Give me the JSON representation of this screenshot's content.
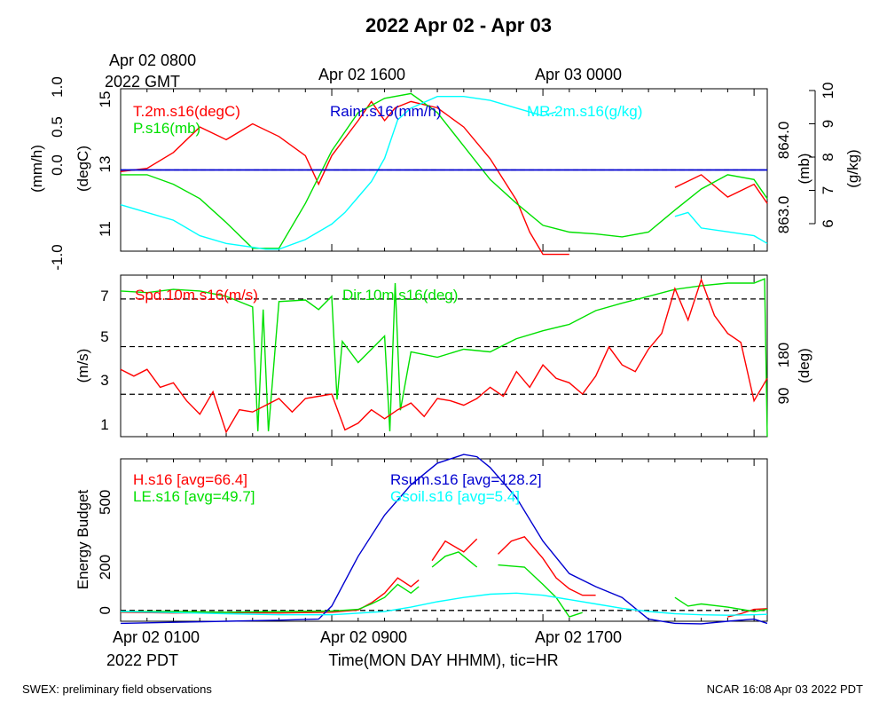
{
  "figure": {
    "title": "2022 Apr 02 - Apr 03",
    "top_axis_labels": [
      "Apr 02 0800",
      "Apr 02 1600",
      "Apr 03 0000"
    ],
    "top_axis_sublabel": "2022 GMT",
    "bottom_axis_labels": [
      "Apr 02 0100",
      "Apr 02 0900",
      "Apr 02 1700"
    ],
    "bottom_axis_sublabel": "2022 PDT",
    "xlabel": "Time(MON DAY HHMM), tic=HR",
    "footer_left": "SWEX: preliminary field observations",
    "footer_right": "NCAR 16:08 Apr 03 2022 PDT"
  },
  "colors": {
    "red": "#ff0000",
    "green": "#00e000",
    "blue": "#0000d0",
    "cyan": "#00ffff",
    "black": "#000000"
  },
  "chart_data": [
    {
      "type": "line",
      "panel": "met",
      "x_range_hours_pdt": [
        0.0,
        24.5
      ],
      "series": [
        {
          "name": "T.2m.s16(degC)",
          "color": "red",
          "axis": "degC",
          "axis_range": [
            10.3,
            15.4
          ],
          "x": [
            0,
            1,
            2,
            3,
            4,
            5,
            6,
            7,
            7.5,
            8,
            9,
            9.5,
            10,
            10.4,
            11,
            12,
            13,
            14,
            15,
            15.5,
            16,
            16.5,
            17
          ],
          "values": [
            12.8,
            12.9,
            13.4,
            14.2,
            13.8,
            14.3,
            13.9,
            13.3,
            12.4,
            13.3,
            14.4,
            15.0,
            14.4,
            14.8,
            15.0,
            14.8,
            14.2,
            13.2,
            11.9,
            10.9,
            10.2,
            10.2,
            10.2
          ],
          "gap_before": 17.2,
          "x2": [
            21,
            21.5,
            22,
            23,
            24,
            24.5
          ],
          "values2": [
            12.3,
            12.5,
            12.7,
            12.0,
            12.4,
            11.8
          ]
        },
        {
          "name": "P.s16(mb)",
          "color": "green",
          "axis": "mb",
          "axis_range": [
            862.85,
            864.55
          ],
          "x": [
            0,
            1,
            2,
            3,
            4,
            5,
            6,
            7,
            8,
            9,
            10,
            11,
            12,
            13,
            14,
            15,
            16,
            17,
            18,
            19,
            20,
            21,
            22,
            23,
            24,
            24.5
          ],
          "values": [
            863.65,
            863.65,
            863.55,
            863.4,
            863.15,
            862.88,
            862.88,
            863.35,
            863.9,
            864.3,
            864.45,
            864.5,
            864.3,
            863.95,
            863.6,
            863.35,
            863.12,
            863.05,
            863.03,
            863.0,
            863.05,
            863.28,
            863.5,
            863.65,
            863.6,
            863.4
          ]
        },
        {
          "name": "MR.2m.s16(g/kg)",
          "color": "cyan",
          "axis": "g/kg",
          "axis_range": [
            5.9,
            10.1
          ],
          "x": [
            0,
            1,
            2,
            3,
            4,
            5,
            5.5,
            6,
            7,
            8,
            8.5,
            9,
            9.5,
            10,
            10.5,
            11,
            12,
            13,
            14,
            15,
            16,
            16.5
          ],
          "values": [
            7.1,
            6.9,
            6.7,
            6.3,
            6.1,
            6.0,
            5.95,
            5.95,
            6.2,
            6.6,
            6.9,
            7.3,
            7.7,
            8.3,
            9.3,
            9.6,
            9.9,
            9.9,
            9.8,
            9.6,
            9.4,
            9.5
          ],
          "gap_before": 16.6,
          "x2": [
            21,
            21.5,
            22,
            23,
            24,
            24.5
          ],
          "values2": [
            6.8,
            6.9,
            6.5,
            6.4,
            6.3,
            6.1
          ]
        },
        {
          "name": "Rainr.s16(mm/h)",
          "color": "blue",
          "axis": "mm/h",
          "axis_range": [
            -1.0,
            1.0
          ],
          "x": [
            0,
            24.5
          ],
          "values": [
            0.0,
            0.0
          ]
        }
      ],
      "left_axes": [
        {
          "label": "(mm/h)",
          "ticks": [
            "-1.0",
            "0.0",
            "0.5",
            "1.0"
          ]
        },
        {
          "label": "(degC)",
          "ticks": [
            "11",
            "13",
            "15"
          ]
        }
      ],
      "right_axes": [
        {
          "label": "(mb)",
          "ticks": [
            "863.0",
            "864.0"
          ]
        },
        {
          "label": "(g/kg)",
          "ticks": [
            "6",
            "7",
            "8",
            "9",
            "10"
          ]
        }
      ],
      "reference_lines": [
        {
          "axis": "mm/h",
          "value": 0.0,
          "style": "dashed"
        }
      ]
    },
    {
      "type": "line",
      "panel": "wind",
      "x_range_hours_pdt": [
        0.0,
        24.5
      ],
      "series": [
        {
          "name": "Spd.10m.s16(m/s)",
          "color": "red",
          "axis": "m/s",
          "axis_range": [
            0.6,
            7.8
          ],
          "x": [
            0,
            0.5,
            1,
            1.5,
            2,
            2.5,
            3,
            3.5,
            4,
            4.5,
            5,
            5.5,
            6,
            6.5,
            7,
            7.5,
            8,
            8.5,
            9,
            9.5,
            10,
            10.5,
            11,
            11.5,
            12,
            12.5,
            13,
            13.5,
            14,
            14.5,
            15,
            15.5,
            16,
            16.5,
            17,
            17.5,
            18,
            18.5,
            19,
            19.5,
            20,
            20.5,
            21,
            21.5,
            22,
            22.5,
            23,
            23.5,
            24,
            24.5
          ],
          "values": [
            3.6,
            3.3,
            3.6,
            2.8,
            3.0,
            2.2,
            1.6,
            2.6,
            0.8,
            1.8,
            1.7,
            2.0,
            2.3,
            1.7,
            2.3,
            2.4,
            2.5,
            0.9,
            1.2,
            1.8,
            1.4,
            1.8,
            2.1,
            1.5,
            2.3,
            2.2,
            2.0,
            2.3,
            2.8,
            2.4,
            3.5,
            2.8,
            3.8,
            3.2,
            3.0,
            2.5,
            3.3,
            4.6,
            3.8,
            3.5,
            4.5,
            5.2,
            7.2,
            5.8,
            7.6,
            6.0,
            5.2,
            4.8,
            2.2,
            3.2
          ]
        },
        {
          "name": "Dir.10m.s16(deg)",
          "color": "green",
          "axis": "deg",
          "axis_range": [
            10,
            315
          ],
          "x": [
            0,
            1,
            2,
            3,
            4,
            5,
            5.2,
            5.4,
            5.6,
            6,
            7,
            7.5,
            8,
            8.2,
            8.4,
            9,
            10,
            10.2,
            10.4,
            10.6,
            11,
            12,
            13,
            14,
            15,
            16,
            17,
            18,
            19,
            20,
            21,
            22,
            23,
            24,
            24.4,
            24.5
          ],
          "values": [
            285,
            282,
            288,
            285,
            275,
            255,
            20,
            250,
            20,
            265,
            268,
            250,
            275,
            80,
            190,
            150,
            200,
            20,
            300,
            60,
            170,
            160,
            175,
            170,
            195,
            210,
            222,
            248,
            262,
            275,
            288,
            295,
            300,
            300,
            308,
            10
          ]
        }
      ],
      "left_axes": [
        {
          "label": "(m/s)",
          "ticks": [
            "1",
            "3",
            "5",
            "7"
          ]
        }
      ],
      "right_axes": [
        {
          "label": "(deg)",
          "ticks": [
            "90",
            "180"
          ]
        }
      ],
      "reference_lines": [
        {
          "axis": "deg",
          "value": 90,
          "style": "dashed"
        },
        {
          "axis": "deg",
          "value": 180,
          "style": "dashed"
        },
        {
          "axis": "deg",
          "value": 270,
          "style": "dashed"
        }
      ]
    },
    {
      "type": "line",
      "panel": "energy",
      "x_range_hours_pdt": [
        0.0,
        24.5
      ],
      "ylabel": "Energy Budget",
      "ylim": [
        -50,
        700
      ],
      "ticks": [
        "0",
        "200",
        "500"
      ],
      "series": [
        {
          "name": "H.s16",
          "avg_label": "[avg=66.4]",
          "color": "red",
          "segments": [
            {
              "x": [
                0,
                2,
                4,
                6,
                8,
                9,
                9.5,
                10,
                10.5,
                11,
                11.3
              ],
              "values": [
                -8,
                -12,
                -10,
                -12,
                -8,
                2,
                35,
                80,
                150,
                110,
                140
              ]
            },
            {
              "x": [
                11.8,
                12.3,
                13,
                13.5
              ],
              "values": [
                230,
                320,
                270,
                330
              ]
            },
            {
              "x": [
                14.3,
                14.8,
                15.3,
                16,
                16.5,
                17,
                17.5,
                18
              ],
              "values": [
                260,
                320,
                340,
                240,
                150,
                100,
                70,
                70
              ]
            },
            {
              "x": [
                23,
                23.5,
                24,
                24.5
              ],
              "values": [
                -30,
                -15,
                5,
                8
              ]
            }
          ]
        },
        {
          "name": "LE.s16",
          "avg_label": "[avg=49.7]",
          "color": "green",
          "segments": [
            {
              "x": [
                0,
                2,
                4,
                6,
                8,
                9,
                9.5,
                10,
                10.5,
                11,
                11.3
              ],
              "values": [
                -5,
                -5,
                -8,
                -5,
                -3,
                5,
                30,
                60,
                120,
                80,
                110
              ]
            },
            {
              "x": [
                11.8,
                12.3,
                12.8,
                13.3,
                13.5
              ],
              "values": [
                200,
                250,
                270,
                220,
                200
              ]
            },
            {
              "x": [
                14.3,
                15.3,
                16,
                16.5,
                17,
                17.5
              ],
              "values": [
                210,
                200,
                120,
                60,
                -30,
                -10
              ]
            },
            {
              "x": [
                21,
                21.5,
                22,
                23,
                24,
                24.5
              ],
              "values": [
                60,
                20,
                30,
                15,
                -5,
                5
              ]
            }
          ]
        },
        {
          "name": "Rsum.s16",
          "avg_label": "[avg=128.2]",
          "color": "blue",
          "segments": [
            {
              "x": [
                0,
                2,
                4,
                6,
                7.5,
                8,
                9,
                10,
                11,
                12,
                13,
                13.5,
                14,
                15,
                16,
                17,
                18,
                19,
                19.5,
                20,
                21,
                22,
                23,
                24,
                24.5
              ],
              "values": [
                -60,
                -55,
                -50,
                -45,
                -40,
                20,
                250,
                440,
                580,
                680,
                720,
                710,
                660,
                520,
                320,
                170,
                110,
                60,
                10,
                -40,
                -60,
                -62,
                -50,
                -40,
                -60
              ]
            }
          ]
        },
        {
          "name": "Gsoil.s16",
          "avg_label": "[avg=5.4]",
          "color": "cyan",
          "segments": [
            {
              "x": [
                0,
                2,
                4,
                6,
                8,
                10,
                11,
                12,
                13,
                14,
                15,
                16,
                17,
                18,
                19,
                20,
                21,
                22,
                23,
                24,
                24.5
              ],
              "values": [
                -5,
                -10,
                -15,
                -20,
                -20,
                -5,
                15,
                40,
                60,
                75,
                80,
                70,
                50,
                30,
                10,
                -5,
                -15,
                -20,
                -22,
                -20,
                -18
              ]
            }
          ]
        }
      ],
      "reference_lines": [
        {
          "value": 0,
          "style": "dashed"
        }
      ]
    }
  ]
}
